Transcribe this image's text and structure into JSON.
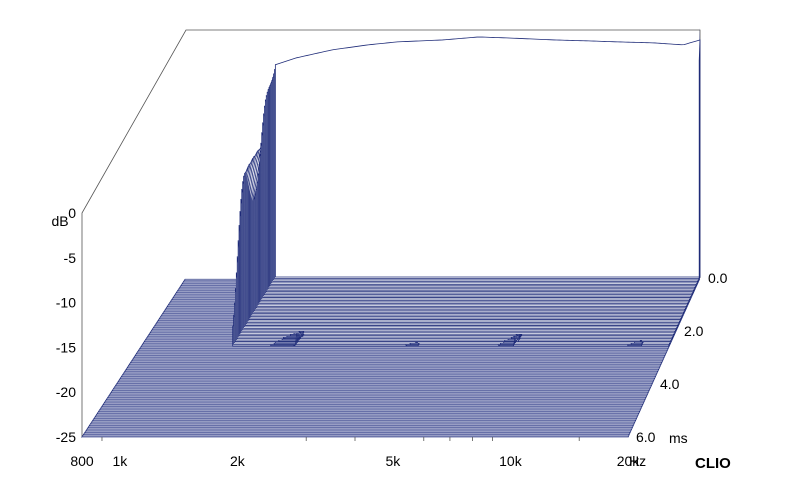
{
  "chart_data": {
    "type": "waterfall",
    "y_ticks": [
      "0",
      "-5",
      "-10",
      "-15",
      "-20",
      "-25"
    ],
    "y_tick_values": [
      0,
      -5,
      -10,
      -15,
      -20,
      -25
    ],
    "y_unit": "dB",
    "x_ticks": [
      "800",
      "1k",
      "2k",
      "5k",
      "10k",
      "20k"
    ],
    "x_tick_values": [
      800,
      1000,
      2000,
      5000,
      10000,
      20000
    ],
    "x_unit": "Hz",
    "z_ticks": [
      "0.0",
      "2.0",
      "4.0",
      "6.0"
    ],
    "z_tick_values": [
      0,
      2,
      4,
      6
    ],
    "z_unit": "ms",
    "ylim": [
      -25,
      0
    ],
    "xlim": [
      800,
      20000
    ],
    "zlim": [
      0,
      6
    ],
    "brand": "CLIO",
    "colors": {
      "line": "#1e2b78",
      "floor": "#6770a8",
      "fill": "#ffffff"
    },
    "front_slice_db": [
      [
        1400,
        -3.5
      ],
      [
        1600,
        -2.8
      ],
      [
        2000,
        -2.0
      ],
      [
        2500,
        -1.5
      ],
      [
        3000,
        -1.2
      ],
      [
        4000,
        -1.0
      ],
      [
        5000,
        -0.7
      ],
      [
        6000,
        -0.8
      ],
      [
        8000,
        -1.0
      ],
      [
        10000,
        -1.1
      ],
      [
        12000,
        -1.2
      ],
      [
        15000,
        -1.3
      ],
      [
        18000,
        -1.5
      ],
      [
        20000,
        -1.0
      ]
    ],
    "slices_count": 48
  }
}
